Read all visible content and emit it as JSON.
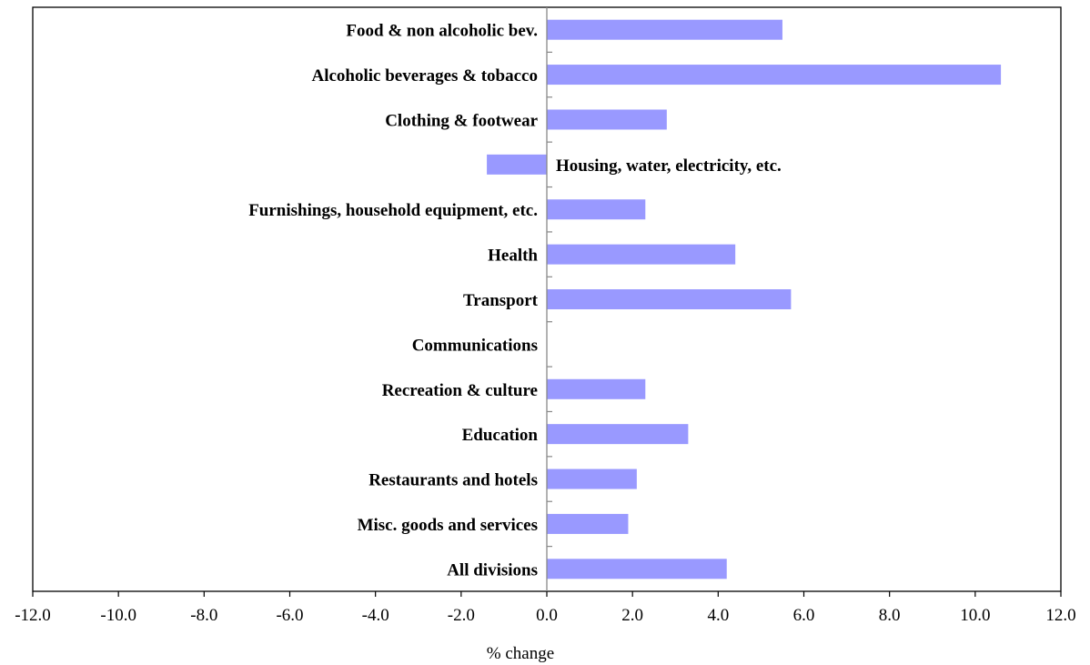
{
  "chart_data": {
    "type": "bar",
    "orientation": "horizontal",
    "categories": [
      "Food & non alcoholic bev.",
      "Alcoholic beverages & tobacco",
      "Clothing & footwear",
      "Housing, water, electricity, etc.",
      "Furnishings, household equipment,  etc.",
      "Health",
      "Transport",
      "Communications",
      "Recreation  & culture",
      "Education",
      "Restaurants and hotels",
      "Misc. goods and services",
      "All divisions"
    ],
    "values": [
      5.5,
      10.6,
      2.8,
      -1.4,
      2.3,
      4.4,
      5.7,
      0.0,
      2.3,
      3.3,
      2.1,
      1.9,
      4.2
    ],
    "xlabel": "% change",
    "ylabel": "",
    "xlim": [
      -12,
      12
    ],
    "xticks": [
      "-12.0",
      "-10.0",
      "-8.0",
      "-6.0",
      "-4.0",
      "-2.0",
      "0.0",
      "2.0",
      "4.0",
      "6.0",
      "8.0",
      "10.0",
      "12.0"
    ],
    "bar_color": "#9999ff",
    "grid": false,
    "legend": "none"
  }
}
